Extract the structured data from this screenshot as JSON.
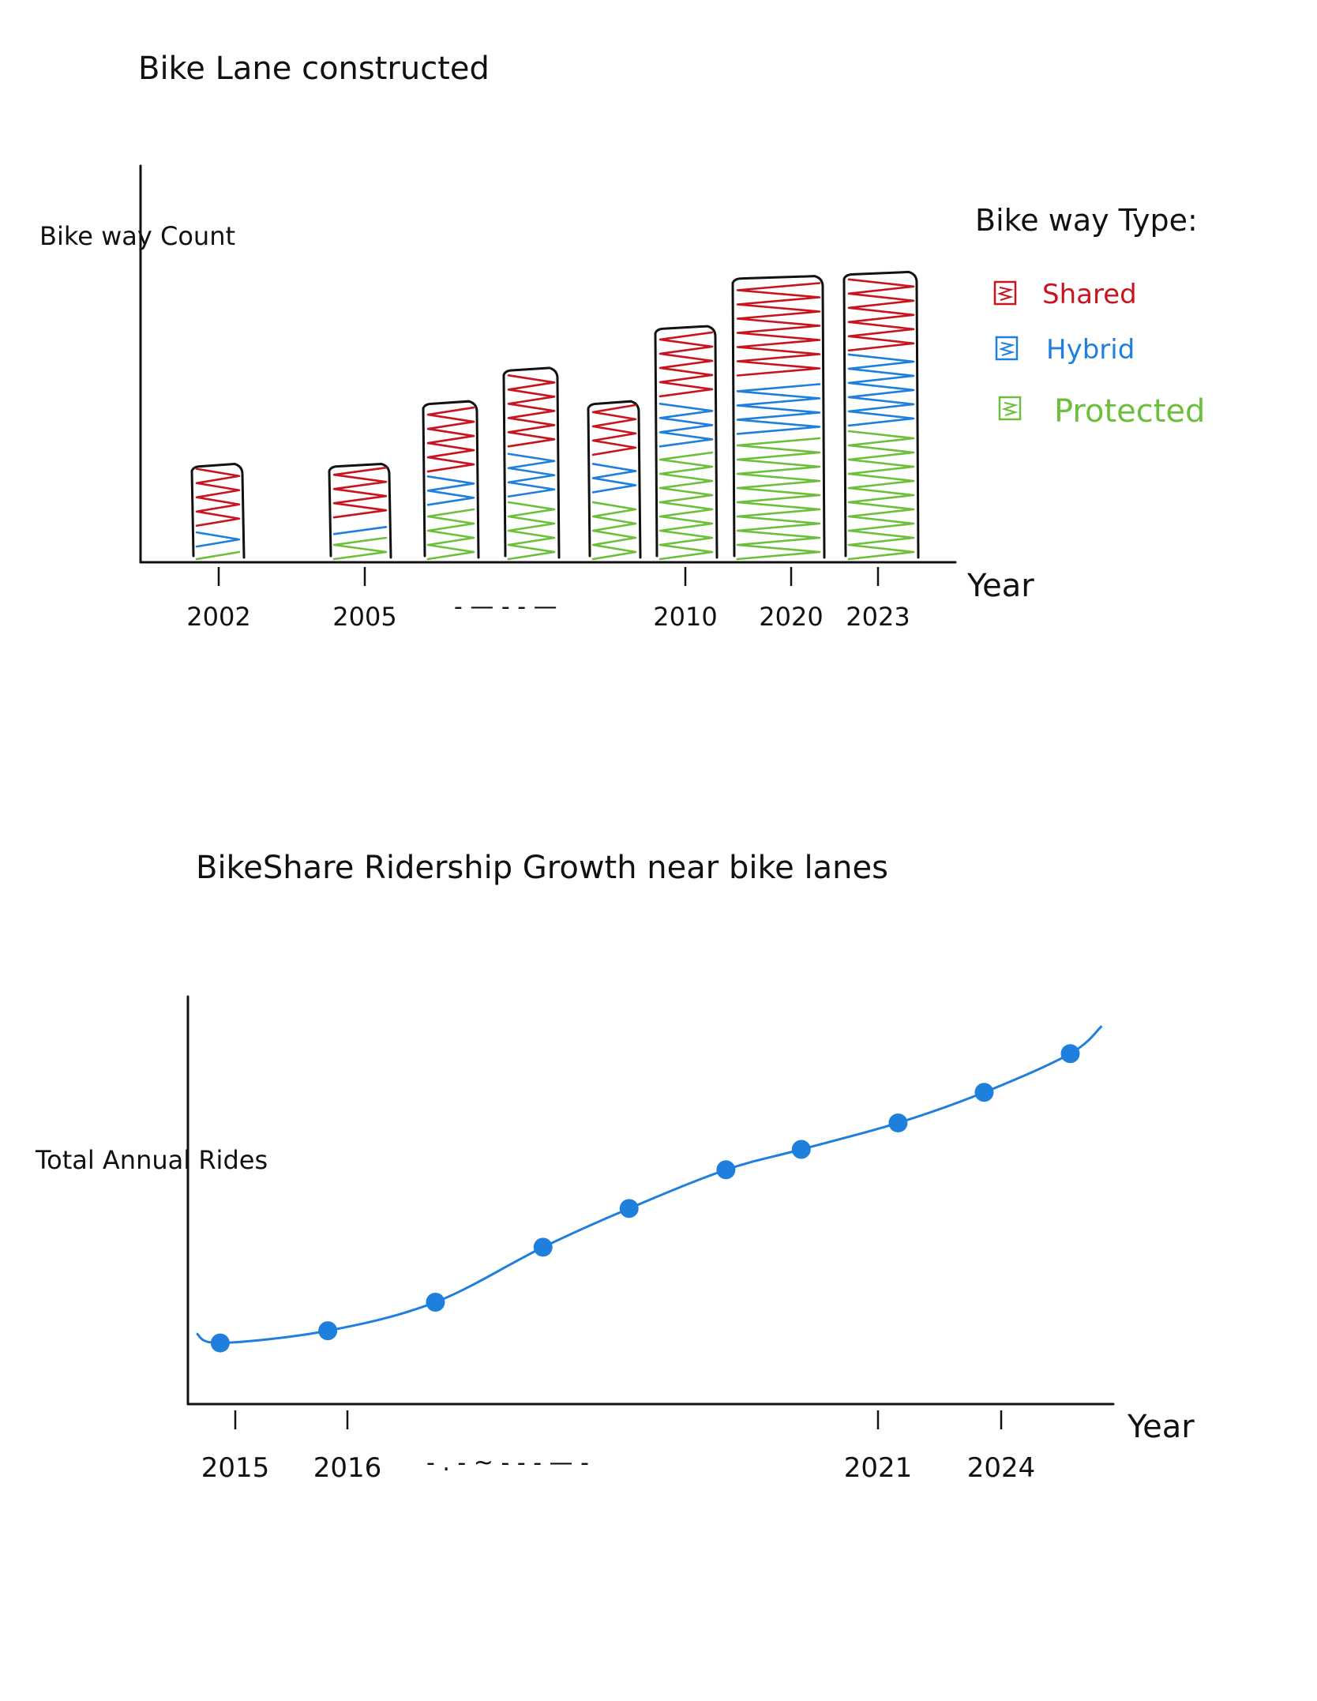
{
  "chart_data": [
    {
      "type": "bar",
      "stacked": true,
      "title": "Bike Lane constructed",
      "ylabel": "Bike way Count",
      "xlabel": "Year",
      "tick_labels": [
        "2002",
        "2005",
        "2010",
        "2020",
        "2023"
      ],
      "axis_break": "- — - - —",
      "legend": {
        "title": "Bike way Type:",
        "position": "right",
        "items": [
          {
            "label": "Shared",
            "color": "#c8141e"
          },
          {
            "label": "Hybrid",
            "color": "#1f7fdc"
          },
          {
            "label": "Protected",
            "color": "#6cbf3a"
          }
        ]
      },
      "categories": [
        "2002",
        "2005",
        "",
        "",
        "",
        "2010",
        "2020",
        "2023"
      ],
      "series": [
        {
          "name": "Protected",
          "values": [
            0.3,
            0.6,
            1.3,
            1.5,
            1.6,
            2.7,
            3.0,
            3.2
          ]
        },
        {
          "name": "Hybrid",
          "values": [
            0.5,
            0.4,
            0.8,
            1.2,
            0.9,
            1.2,
            1.4,
            1.8
          ]
        },
        {
          "name": "Shared",
          "values": [
            1.5,
            1.3,
            1.7,
            1.9,
            1.3,
            1.7,
            2.4,
            1.9
          ]
        }
      ],
      "ylim": [
        0,
        9.5
      ],
      "grid": false
    },
    {
      "type": "line",
      "title": "BikeShare Ridership Growth near bike lanes",
      "ylabel": "Total Annual Rides",
      "xlabel": "Year",
      "tick_labels": [
        "2015",
        "2016",
        "2021",
        "2024"
      ],
      "axis_break": "- . - ~ - - - — -",
      "color": "#1f7fdc",
      "x": [
        0.0,
        1.0,
        2.0,
        3.0,
        3.8,
        4.7,
        5.4,
        6.3,
        7.1,
        7.9
      ],
      "values": [
        1.0,
        1.3,
        2.0,
        3.35,
        4.3,
        5.25,
        5.75,
        6.4,
        7.15,
        8.1
      ],
      "xlim": [
        -0.3,
        8.3
      ],
      "ylim": [
        -0.5,
        9.5
      ],
      "grid": false
    }
  ]
}
